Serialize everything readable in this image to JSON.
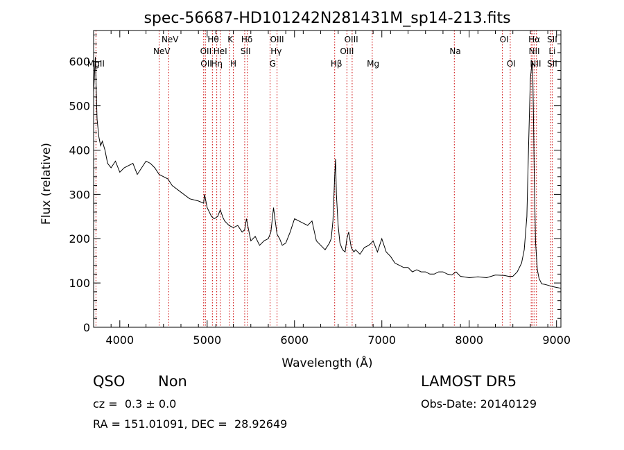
{
  "chart_data": {
    "type": "line",
    "title": "spec-56687-HD101242N281431M_sp14-213.fits",
    "xlabel": "Wavelength (Å)",
    "ylabel": "Flux (relative)",
    "xlim": [
      3700,
      9050
    ],
    "ylim": [
      0,
      670
    ],
    "xticks": [
      4000,
      5000,
      6000,
      7000,
      8000,
      9000
    ],
    "yticks": [
      0,
      100,
      200,
      300,
      400,
      500,
      600
    ],
    "grid": false,
    "series": [
      {
        "x": [
          3700,
          3720,
          3740,
          3760,
          3780,
          3800,
          3830,
          3860,
          3900,
          3950,
          4000,
          4050,
          4100,
          4150,
          4200,
          4250,
          4300,
          4350,
          4400,
          4450,
          4500,
          4550,
          4600,
          4700,
          4800,
          4900,
          4960,
          4970,
          5000,
          5050,
          5080,
          5120,
          5150,
          5180,
          5200,
          5250,
          5300,
          5350,
          5400,
          5430,
          5450,
          5480,
          5500,
          5550,
          5600,
          5650,
          5700,
          5730,
          5760,
          5780,
          5800,
          5830,
          5860,
          5900,
          5950,
          6000,
          6050,
          6100,
          6150,
          6200,
          6250,
          6300,
          6350,
          6400,
          6420,
          6440,
          6460,
          6470,
          6480,
          6500,
          6520,
          6550,
          6580,
          6600,
          6620,
          6650,
          6680,
          6700,
          6750,
          6800,
          6850,
          6880,
          6900,
          6950,
          7000,
          7050,
          7100,
          7150,
          7200,
          7250,
          7300,
          7350,
          7400,
          7450,
          7500,
          7550,
          7600,
          7650,
          7700,
          7750,
          7800,
          7850,
          7900,
          8000,
          8100,
          8200,
          8300,
          8400,
          8450,
          8500,
          8550,
          8600,
          8630,
          8660,
          8680,
          8700,
          8715,
          8725,
          8735,
          8745,
          8760,
          8780,
          8800,
          8830,
          8860,
          8900,
          8950,
          9000,
          9050
        ],
        "y": [
          530,
          610,
          470,
          430,
          410,
          420,
          400,
          370,
          360,
          375,
          350,
          360,
          365,
          370,
          345,
          360,
          375,
          370,
          360,
          345,
          340,
          335,
          320,
          305,
          290,
          285,
          280,
          300,
          270,
          250,
          245,
          250,
          265,
          248,
          240,
          230,
          225,
          230,
          215,
          220,
          245,
          215,
          195,
          205,
          185,
          195,
          200,
          215,
          270,
          240,
          210,
          200,
          185,
          190,
          215,
          245,
          240,
          235,
          230,
          240,
          195,
          185,
          175,
          190,
          200,
          240,
          340,
          380,
          300,
          230,
          190,
          175,
          170,
          200,
          215,
          180,
          170,
          175,
          165,
          180,
          185,
          190,
          195,
          170,
          200,
          170,
          160,
          145,
          140,
          135,
          135,
          125,
          130,
          125,
          125,
          120,
          120,
          125,
          125,
          120,
          118,
          125,
          115,
          112,
          114,
          112,
          118,
          117,
          115,
          115,
          125,
          145,
          175,
          250,
          410,
          560,
          590,
          600,
          490,
          340,
          190,
          130,
          110,
          98,
          97,
          95,
          92,
          90,
          88
        ]
      }
    ],
    "annotations": [
      {
        "label": "MgII",
        "x": 3727,
        "row": 3
      },
      {
        "label": "NeV",
        "x": 4480,
        "row": 2
      },
      {
        "label": "NeV",
        "x": 4575,
        "row": 1
      },
      {
        "label": "OII",
        "x": 4985,
        "row": 2
      },
      {
        "label": "OII",
        "x": 4990,
        "row": 3
      },
      {
        "label": "Hθ",
        "x": 5070,
        "row": 1
      },
      {
        "label": "Hη",
        "x": 5110,
        "row": 3
      },
      {
        "label": "HeI",
        "x": 5150,
        "row": 2
      },
      {
        "label": "K",
        "x": 5265,
        "row": 1
      },
      {
        "label": "H",
        "x": 5300,
        "row": 3
      },
      {
        "label": "Hδ",
        "x": 5455,
        "row": 1
      },
      {
        "label": "SII",
        "x": 5440,
        "row": 2
      },
      {
        "label": "OIII",
        "x": 5800,
        "row": 1
      },
      {
        "label": "Hγ",
        "x": 5790,
        "row": 2
      },
      {
        "label": "G",
        "x": 5750,
        "row": 3
      },
      {
        "label": "Hβ",
        "x": 6480,
        "row": 3
      },
      {
        "label": "OIII",
        "x": 6650,
        "row": 1
      },
      {
        "label": "OIII",
        "x": 6600,
        "row": 2
      },
      {
        "label": "Mg",
        "x": 6900,
        "row": 3
      },
      {
        "label": "Na",
        "x": 7840,
        "row": 2
      },
      {
        "label": "OI",
        "x": 8400,
        "row": 1
      },
      {
        "label": "OI",
        "x": 8480,
        "row": 3
      },
      {
        "label": "Hα",
        "x": 8745,
        "row": 1
      },
      {
        "label": "NII",
        "x": 8745,
        "row": 2
      },
      {
        "label": "NII",
        "x": 8760,
        "row": 3
      },
      {
        "label": "SII",
        "x": 8950,
        "row": 1
      },
      {
        "label": "Li",
        "x": 8950,
        "row": 2
      },
      {
        "label": "SII",
        "x": 8950,
        "row": 3
      }
    ],
    "line_marks": [
      3727,
      4450,
      4560,
      4960,
      4980,
      5060,
      5110,
      5150,
      5255,
      5300,
      5430,
      5460,
      5720,
      5800,
      6460,
      6600,
      6660,
      6890,
      7830,
      8380,
      8470,
      8710,
      8730,
      8750,
      8770,
      8930,
      8950
    ]
  },
  "footer": {
    "object_class": "QSO",
    "subclass": "Non",
    "redshift": "cz =  0.3 ± 0.0",
    "coords": "RA = 151.01091, DEC =  28.92649",
    "survey": "LAMOST DR5",
    "obs_date": "Obs-Date: 20140129"
  },
  "colors": {
    "spectrum": "#000000",
    "line_marks": "#cc0000"
  }
}
